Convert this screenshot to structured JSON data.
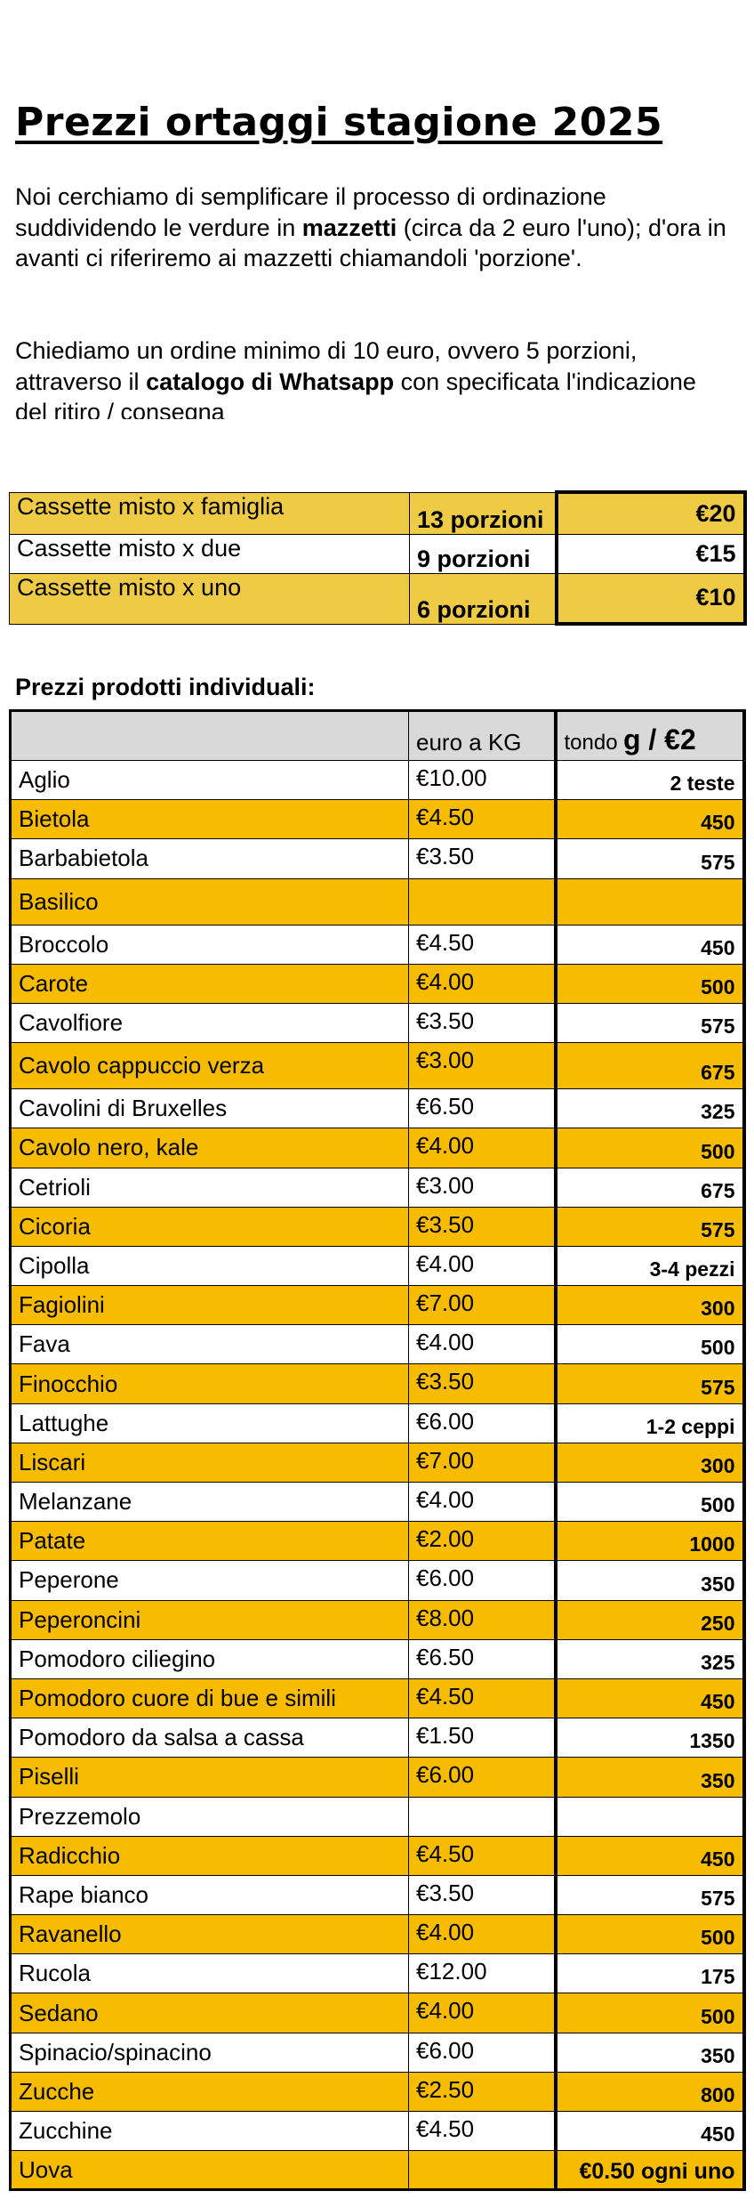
{
  "header": {
    "title": "Prezzi ortaggi stagione 2025"
  },
  "intro": {
    "paragraph_1": [
      "Noi cerchiamo di semplificare il processo di ordinazione suddividendo le verdure in ",
      "mazzetti",
      " (circa da 2 euro l'uno); d'ora in avanti ci riferiremo ai mazzetti chiamandoli 'porzione'."
    ],
    "paragraph_2": [
      "Chiediamo un ordine minimo di 10 euro, ovvero 5 porzioni, attraverso il ",
      "catalogo di Whatsapp",
      " con specificata l'indicazione del ritiro / consegna"
    ]
  },
  "boxes": {
    "rows": [
      [
        "Cassette misto x famiglia",
        "13 porzioni",
        "€20"
      ],
      [
        "Cassette misto x due",
        "9 porzioni",
        "€15"
      ],
      [
        "Cassette misto x uno",
        "6 porzioni",
        "€10"
      ]
    ]
  },
  "products": {
    "title": "Prezzi prodotti individuali:",
    "header": {
      "price": "euro a KG",
      "amount": [
        "tondo",
        "g / €2"
      ]
    },
    "rows": [
      [
        "Aglio",
        "€10.00",
        "2 teste"
      ],
      [
        "Bietola",
        "€4.50",
        "450"
      ],
      [
        "Barbabietola",
        "€3.50",
        "575"
      ],
      [
        "Basilico",
        null,
        null
      ],
      [
        "Broccolo",
        "€4.50",
        "450"
      ],
      [
        "Carote",
        "€4.00",
        "500"
      ],
      [
        "Cavolfiore",
        "€3.50",
        "575"
      ],
      [
        "Cavolo cappuccio verza",
        "€3.00",
        "675"
      ],
      [
        "Cavolini di Bruxelles",
        "€6.50",
        "325"
      ],
      [
        "Cavolo nero, kale",
        "€4.00",
        "500"
      ],
      [
        "Cetrioli",
        "€3.00",
        "675"
      ],
      [
        "Cicoria",
        "€3.50",
        "575"
      ],
      [
        "Cipolla",
        "€4.00",
        "3-4 pezzi"
      ],
      [
        "Fagiolini",
        "€7.00",
        "300"
      ],
      [
        "Fava",
        "€4.00",
        "500"
      ],
      [
        "Finocchio",
        "€3.50",
        "575"
      ],
      [
        "Lattughe",
        "€6.00",
        "1-2 ceppi"
      ],
      [
        "Liscari",
        "€7.00",
        "300"
      ],
      [
        "Melanzane",
        "€4.00",
        "500"
      ],
      [
        "Patate",
        "€2.00",
        "1000"
      ],
      [
        "Peperone",
        "€6.00",
        "350"
      ],
      [
        "Peperoncini",
        "€8.00",
        "250"
      ],
      [
        "Pomodoro ciliegino",
        "€6.50",
        "325"
      ],
      [
        "Pomodoro cuore di bue e simili",
        "€4.50",
        "450"
      ],
      [
        "Pomodoro da salsa a cassa",
        "€1.50",
        "1350"
      ],
      [
        "Piselli",
        "€6.00",
        "350"
      ],
      [
        "Prezzemolo",
        null,
        null
      ],
      [
        "Radicchio",
        "€4.50",
        "450"
      ],
      [
        "Rape bianco",
        "€3.50",
        "575"
      ],
      [
        "Ravanello",
        "€4.00",
        "500"
      ],
      [
        "Rucola",
        "€12.00",
        "175"
      ],
      [
        "Sedano",
        "€4.00",
        "500"
      ],
      [
        "Spinacio/spinacino",
        "€6.00",
        "350"
      ],
      [
        "Zucche",
        "€2.50",
        "800"
      ],
      [
        "Zucchine",
        "€4.50",
        "450"
      ],
      [
        "Uova",
        null,
        "€0.50 ogni uno"
      ]
    ]
  }
}
